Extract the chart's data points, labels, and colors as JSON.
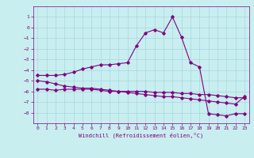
{
  "xlabel": "Windchill (Refroidissement éolien,°C)",
  "x_values": [
    0,
    1,
    2,
    3,
    4,
    5,
    6,
    7,
    8,
    9,
    10,
    11,
    12,
    13,
    14,
    15,
    16,
    17,
    18,
    19,
    20,
    21,
    22,
    23
  ],
  "line1": [
    -4.5,
    -4.5,
    -4.5,
    -4.4,
    -4.2,
    -3.9,
    -3.7,
    -3.5,
    -3.5,
    -3.4,
    -3.3,
    -1.7,
    -0.5,
    -0.2,
    -0.5,
    1.0,
    -0.9,
    -3.3,
    -3.7,
    -8.1,
    -8.2,
    -8.3,
    -8.1,
    -8.1
  ],
  "line2": [
    -5.0,
    -5.1,
    -5.3,
    -5.5,
    -5.6,
    -5.7,
    -5.7,
    -5.8,
    -5.9,
    -6.0,
    -6.1,
    -6.2,
    -6.3,
    -6.4,
    -6.5,
    -6.5,
    -6.6,
    -6.7,
    -6.8,
    -6.9,
    -7.0,
    -7.1,
    -7.2,
    -6.5
  ],
  "line3": [
    -5.8,
    -5.8,
    -5.9,
    -5.8,
    -5.8,
    -5.8,
    -5.8,
    -5.9,
    -6.0,
    -6.0,
    -6.0,
    -6.0,
    -6.0,
    -6.1,
    -6.1,
    -6.1,
    -6.2,
    -6.2,
    -6.3,
    -6.3,
    -6.4,
    -6.5,
    -6.6,
    -6.6
  ],
  "ylim": [
    -9,
    2
  ],
  "yticks": [
    1,
    0,
    -1,
    -2,
    -3,
    -4,
    -5,
    -6,
    -7,
    -8
  ],
  "line_color": "#800080",
  "bg_color": "#c8eef0",
  "grid_color": "#a8d8dc",
  "marker": "D",
  "markersize": 1.8,
  "linewidth": 0.8
}
